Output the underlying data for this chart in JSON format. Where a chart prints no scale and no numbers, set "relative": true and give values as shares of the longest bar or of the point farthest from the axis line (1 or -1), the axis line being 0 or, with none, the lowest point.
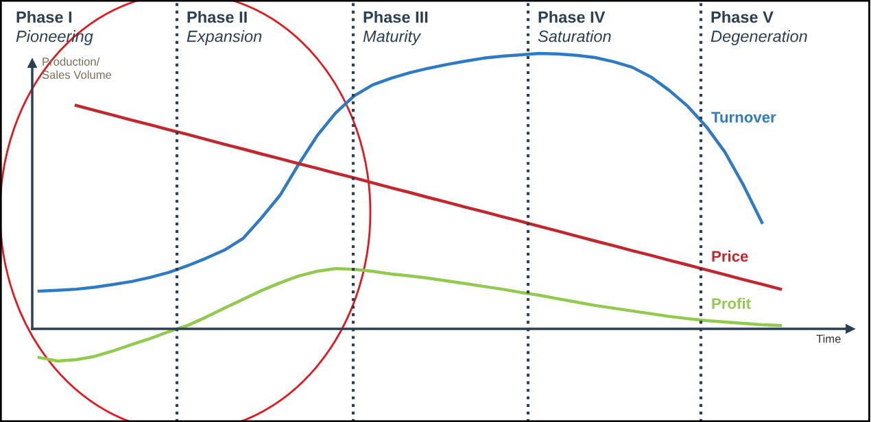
{
  "chart_data": {
    "type": "line",
    "relative": true,
    "xlabel": "Time",
    "ylabel": "Production/\nSales Volume",
    "categories": [
      null,
      null,
      null,
      null,
      null,
      null,
      null,
      null,
      null,
      null,
      null,
      null,
      null,
      null,
      null,
      null,
      null,
      null,
      null,
      null,
      null,
      null,
      null,
      null,
      null,
      null,
      null,
      null,
      null,
      null,
      null,
      null,
      null,
      null,
      null,
      null,
      null,
      null,
      null,
      null,
      null
    ],
    "series": [
      {
        "name": "Turnover",
        "color": "#2e7bc4",
        "values": [
          0.137,
          0.14,
          0.144,
          0.151,
          0.161,
          0.172,
          0.187,
          0.205,
          0.229,
          0.256,
          0.286,
          0.328,
          0.403,
          0.485,
          0.597,
          0.701,
          0.784,
          0.846,
          0.886,
          0.91,
          0.93,
          0.946,
          0.96,
          0.972,
          0.983,
          0.99,
          0.995,
          1.0,
          0.998,
          0.993,
          0.985,
          0.97,
          0.95,
          0.915,
          0.866,
          0.808,
          0.734,
          0.642,
          0.522,
          0.386,
          null
        ]
      },
      {
        "name": "Price",
        "color": "#c0282d",
        "values": [
          null,
          null,
          0.811,
          0.793,
          0.776,
          0.758,
          0.741,
          0.723,
          0.706,
          0.688,
          0.67,
          0.653,
          0.635,
          0.618,
          0.6,
          0.583,
          0.565,
          0.548,
          0.53,
          0.512,
          0.495,
          0.477,
          0.46,
          0.442,
          0.425,
          0.407,
          0.39,
          0.372,
          0.355,
          0.337,
          0.319,
          0.302,
          0.284,
          0.267,
          0.249,
          0.232,
          0.214,
          0.197,
          0.179,
          0.162,
          0.144
        ]
      },
      {
        "name": "Profit",
        "color": "#92c94f",
        "values": [
          -0.104,
          -0.117,
          -0.112,
          -0.1,
          -0.08,
          -0.057,
          -0.035,
          -0.01,
          0.012,
          0.042,
          0.075,
          0.107,
          0.139,
          0.167,
          0.192,
          0.209,
          0.219,
          0.216,
          0.209,
          0.199,
          0.192,
          0.184,
          0.174,
          0.164,
          0.154,
          0.144,
          0.132,
          0.122,
          0.109,
          0.097,
          0.085,
          0.075,
          0.065,
          0.055,
          0.045,
          0.037,
          0.03,
          0.025,
          0.02,
          0.015,
          0.012
        ]
      }
    ],
    "annotations": [
      "Phase I",
      "Pioneering",
      "Phase II",
      "Expansion",
      "Phase III",
      "Maturity",
      "Phase IV",
      "Saturation",
      "Phase V",
      "Degeneration"
    ],
    "legend": false,
    "marker": "none",
    "line_style": "solid"
  }
}
